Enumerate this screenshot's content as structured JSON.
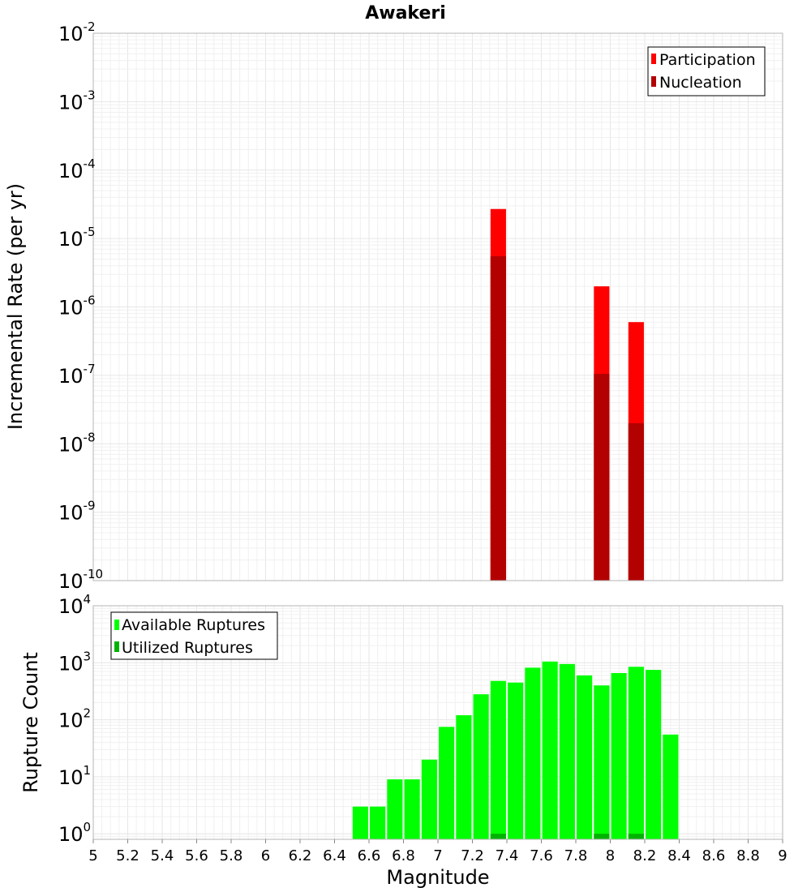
{
  "chart_data": [
    {
      "type": "bar",
      "title": "Awakeri",
      "xlabel": "",
      "ylabel": "Incremental Rate (per yr)",
      "yscale": "log",
      "xlim": [
        5,
        9
      ],
      "ylim": [
        1e-10,
        0.01
      ],
      "y_ticks": [
        {
          "base": "10",
          "exp": "-2"
        },
        {
          "base": "10",
          "exp": "-3"
        },
        {
          "base": "10",
          "exp": "-4"
        },
        {
          "base": "10",
          "exp": "-5"
        },
        {
          "base": "10",
          "exp": "-6"
        },
        {
          "base": "10",
          "exp": "-7"
        },
        {
          "base": "10",
          "exp": "-8"
        },
        {
          "base": "10",
          "exp": "-9"
        },
        {
          "base": "10",
          "exp": "-10"
        }
      ],
      "grid": true,
      "legend_position": "top-right",
      "bar_width": 0.09,
      "series": [
        {
          "name": "Participation",
          "color": "#ff0000",
          "x": [
            7.35,
            7.95,
            8.15
          ],
          "values": [
            2.7e-05,
            2e-06,
            6e-07
          ]
        },
        {
          "name": "Nucleation",
          "color": "#b30000",
          "x": [
            7.35,
            7.95,
            8.15
          ],
          "values": [
            5.5e-06,
            1.05e-07,
            2e-08
          ]
        }
      ]
    },
    {
      "type": "bar",
      "xlabel": "Magnitude",
      "ylabel": "Rupture Count",
      "yscale": "log",
      "xlim": [
        5,
        9
      ],
      "ylim": [
        0.8,
        10000
      ],
      "y_ticks": [
        {
          "base": "10",
          "exp": "4"
        },
        {
          "base": "10",
          "exp": "3"
        },
        {
          "base": "10",
          "exp": "2"
        },
        {
          "base": "10",
          "exp": "1"
        },
        {
          "base": "10",
          "exp": "0"
        }
      ],
      "x_ticks": [
        "5",
        "5.2",
        "5.4",
        "5.6",
        "5.8",
        "6",
        "6.2",
        "6.4",
        "6.6",
        "6.8",
        "7",
        "7.2",
        "7.4",
        "7.6",
        "7.8",
        "8",
        "8.2",
        "8.4",
        "8.6",
        "8.8",
        "9"
      ],
      "grid": true,
      "legend_position": "top-left",
      "bar_width": 0.09,
      "series": [
        {
          "name": "Available Ruptures",
          "color": "#00ff00",
          "x": [
            6.55,
            6.65,
            6.75,
            6.85,
            6.95,
            7.05,
            7.15,
            7.25,
            7.35,
            7.45,
            7.55,
            7.65,
            7.75,
            7.85,
            7.95,
            8.05,
            8.15,
            8.25,
            8.35
          ],
          "values": [
            3,
            3,
            9,
            9,
            20,
            75,
            120,
            280,
            480,
            450,
            820,
            1050,
            950,
            600,
            400,
            660,
            850,
            750,
            55
          ]
        },
        {
          "name": "Utilized Ruptures",
          "color": "#00b300",
          "x": [
            7.35,
            7.95,
            8.15
          ],
          "values": [
            1,
            1,
            1
          ]
        }
      ]
    }
  ]
}
